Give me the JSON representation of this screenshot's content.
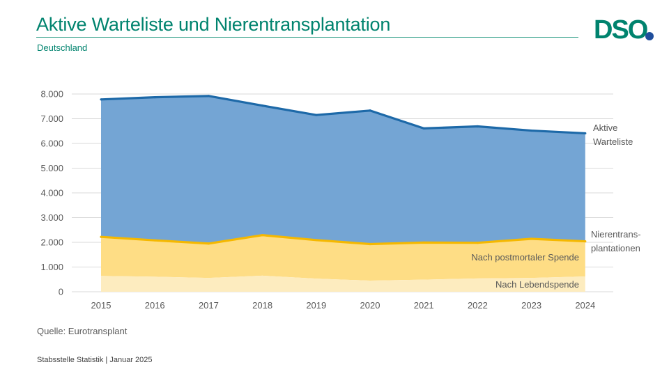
{
  "header": {
    "title": "Aktive Warteliste und Nierentransplantation",
    "subtitle": "Deutschland",
    "logo_text": "DSO"
  },
  "colors": {
    "brand": "#00836e",
    "waitlist_fill": "#74a5d4",
    "waitlist_line": "#1d69a8",
    "postmortal_fill": "#fedd85",
    "living_fill": "#fdecbf",
    "transplant_line": "#f5b800",
    "logo_dot": "#1f4e9c"
  },
  "chart_data": {
    "type": "area",
    "x": [
      2015,
      2016,
      2017,
      2018,
      2019,
      2020,
      2021,
      2022,
      2023,
      2024
    ],
    "ylim": [
      0,
      8000
    ],
    "yticks": [
      "0",
      "1.000",
      "2.000",
      "3.000",
      "4.000",
      "5.000",
      "6.000",
      "7.000",
      "8.000"
    ],
    "ytick_values": [
      0,
      1000,
      2000,
      3000,
      4000,
      5000,
      6000,
      7000,
      8000
    ],
    "grid": true,
    "series": [
      {
        "name": "Aktive Warteliste",
        "values": [
          7780,
          7870,
          7920,
          7530,
          7150,
          7330,
          6610,
          6690,
          6520,
          6410
        ]
      },
      {
        "name": "Nach postmortaler Spende",
        "values": [
          1580,
          1470,
          1390,
          1640,
          1560,
          1480,
          1500,
          1440,
          1580,
          1420
        ]
      },
      {
        "name": "Nach Lebendspende",
        "values": [
          640,
          610,
          560,
          650,
          530,
          450,
          490,
          540,
          560,
          620
        ]
      }
    ],
    "annotations": {
      "waitlist": [
        "Aktive",
        "Warteliste"
      ],
      "transplant": [
        "Nierentrans-",
        "plantationen"
      ],
      "postmortal": "Nach postmortaler Spende",
      "living": "Nach Lebendspende"
    }
  },
  "footer": {
    "source": "Quelle: Eurotransplant",
    "credit": "Stabsstelle Statistik | Januar 2025"
  }
}
